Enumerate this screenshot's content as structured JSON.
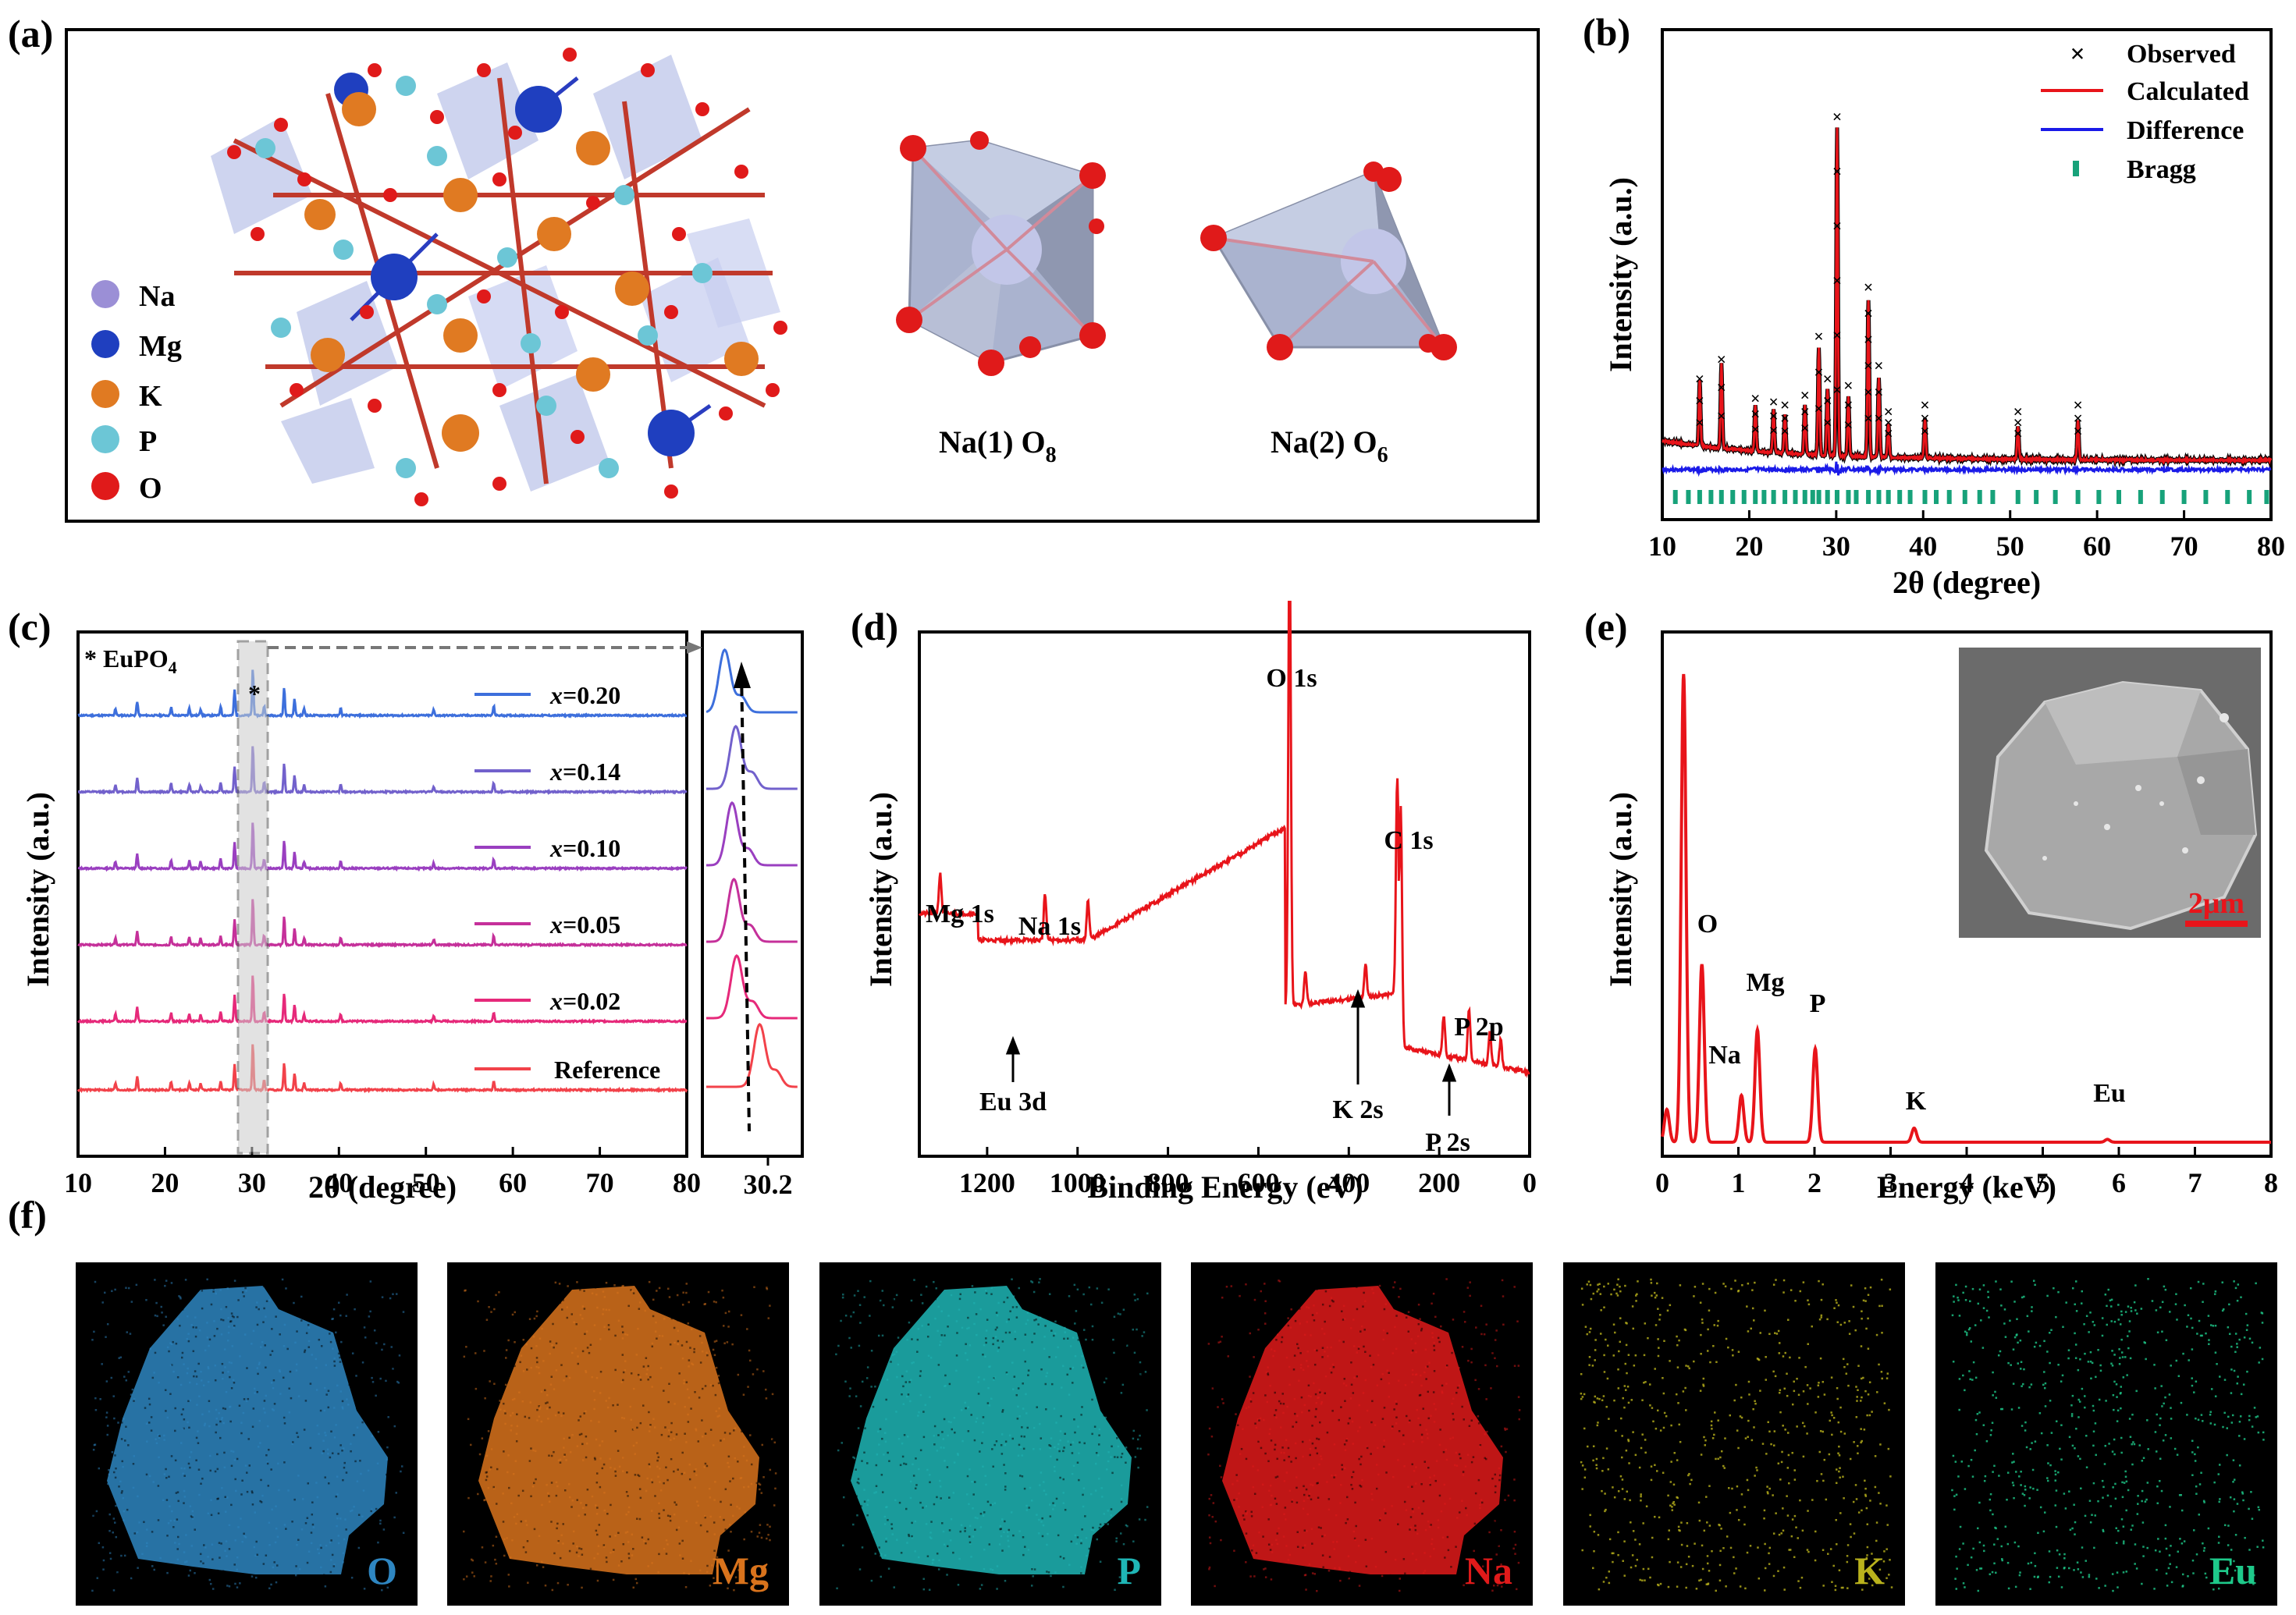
{
  "panels": {
    "a": "(a)",
    "b": "(b)",
    "c": "(c)",
    "d": "(d)",
    "e": "(e)",
    "f": "(f)"
  },
  "panel_a": {
    "legend": [
      {
        "label": "Na",
        "color": "#9b8fd6"
      },
      {
        "label": "Mg",
        "color": "#1f3fbf"
      },
      {
        "label": "K",
        "color": "#e07a22"
      },
      {
        "label": "P",
        "color": "#6cc6d6"
      },
      {
        "label": "O",
        "color": "#e01a1a"
      }
    ],
    "polyhedra": [
      {
        "prefix": "Na(1) O",
        "sub": "8"
      },
      {
        "prefix": "Na(2) O",
        "sub": "6"
      }
    ]
  },
  "chart_data": [
    {
      "id": "b",
      "type": "line",
      "xlabel": "2θ (degree)",
      "ylabel": "Intensity (a.u.)",
      "xlim": [
        10,
        80
      ],
      "xticks": [
        "10",
        "20",
        "30",
        "40",
        "50",
        "60",
        "70",
        "80"
      ],
      "legend_position": "top-right",
      "legend": [
        {
          "label": "Observed",
          "color": "#000000",
          "marker": "x"
        },
        {
          "label": "Calculated",
          "color": "#e8141a",
          "marker": "line"
        },
        {
          "label": "Difference",
          "color": "#1a1ae8",
          "marker": "line"
        },
        {
          "label": "Bragg",
          "color": "#17a27a",
          "marker": "bar"
        }
      ],
      "peaks": [
        {
          "x": 14.3,
          "h": 0.2
        },
        {
          "x": 16.8,
          "h": 0.26
        },
        {
          "x": 20.7,
          "h": 0.14
        },
        {
          "x": 22.8,
          "h": 0.13
        },
        {
          "x": 24.1,
          "h": 0.12
        },
        {
          "x": 26.4,
          "h": 0.15
        },
        {
          "x": 28.0,
          "h": 0.33
        },
        {
          "x": 29.0,
          "h": 0.2
        },
        {
          "x": 30.1,
          "h": 1.0
        },
        {
          "x": 31.4,
          "h": 0.18
        },
        {
          "x": 33.7,
          "h": 0.48
        },
        {
          "x": 34.9,
          "h": 0.24
        },
        {
          "x": 36.0,
          "h": 0.1
        },
        {
          "x": 40.2,
          "h": 0.12
        },
        {
          "x": 50.9,
          "h": 0.1
        },
        {
          "x": 57.8,
          "h": 0.12
        }
      ],
      "bragg_positions": [
        11.5,
        13.0,
        14.3,
        15.6,
        16.8,
        18.1,
        19.4,
        20.7,
        21.7,
        22.8,
        24.1,
        25.3,
        26.4,
        27.3,
        28.0,
        29.0,
        30.1,
        31.4,
        32.3,
        33.7,
        34.9,
        36.0,
        37.3,
        38.5,
        40.2,
        41.5,
        43.0,
        44.8,
        46.5,
        48.0,
        50.9,
        53.0,
        55.2,
        57.8,
        60.2,
        62.5,
        65.0,
        67.5,
        70.0,
        72.5,
        75.0,
        77.5,
        79.5
      ]
    },
    {
      "id": "c",
      "type": "line",
      "xlabel": "2θ (degree)",
      "ylabel": "Intensity (a.u.)",
      "xlim": [
        10,
        80
      ],
      "xticks": [
        "10",
        "20",
        "30",
        "40",
        "50",
        "60",
        "70",
        "80"
      ],
      "annotation": "* EuPO",
      "annotation_sub": "4",
      "series": [
        {
          "name": "x=0.20",
          "color": "#3d6fdc",
          "prefix": "x",
          "value": "=0.20"
        },
        {
          "name": "x=0.14",
          "color": "#7261cc",
          "prefix": "x",
          "value": "=0.14"
        },
        {
          "name": "x=0.10",
          "color": "#9a3fc0",
          "prefix": "x",
          "value": "=0.10"
        },
        {
          "name": "x=0.05",
          "color": "#c5309a",
          "prefix": "x",
          "value": "=0.05"
        },
        {
          "name": "x=0.02",
          "color": "#e6297a",
          "prefix": "x",
          "value": "=0.02"
        },
        {
          "name": "Reference",
          "color": "#f2424a",
          "prefix": "",
          "value": "Reference"
        }
      ],
      "peaks": [
        {
          "x": 14.3,
          "h": 0.15
        },
        {
          "x": 16.8,
          "h": 0.3
        },
        {
          "x": 20.7,
          "h": 0.18
        },
        {
          "x": 22.8,
          "h": 0.16
        },
        {
          "x": 24.1,
          "h": 0.14
        },
        {
          "x": 26.4,
          "h": 0.2
        },
        {
          "x": 28.0,
          "h": 0.55
        },
        {
          "x": 30.1,
          "h": 1.0
        },
        {
          "x": 31.4,
          "h": 0.2
        },
        {
          "x": 33.7,
          "h": 0.6
        },
        {
          "x": 34.9,
          "h": 0.35
        },
        {
          "x": 36.0,
          "h": 0.15
        },
        {
          "x": 40.2,
          "h": 0.15
        },
        {
          "x": 50.9,
          "h": 0.12
        },
        {
          "x": 57.8,
          "h": 0.2
        }
      ],
      "zoom_tick": "30.2",
      "zoom_peak_shift": [
        0.2,
        0.32,
        0.28,
        0.3,
        0.33,
        0.58
      ]
    },
    {
      "id": "d",
      "type": "line",
      "xlabel": "Binding Energy (eV)",
      "ylabel": "Intensity (a.u.)",
      "xlim": [
        1350,
        0
      ],
      "xticks": [
        "1200",
        "1000",
        "800",
        "600",
        "400",
        "200",
        "0"
      ],
      "labels": [
        "O 1s",
        "C 1s",
        "Mg 1s",
        "Na 1s",
        "P 2p",
        "Eu 3d",
        "K 2s",
        "P 2s"
      ],
      "peaks": [
        {
          "x": 1304,
          "h": 0.06
        },
        {
          "x": 1072,
          "h": 0.07
        },
        {
          "x": 977,
          "h": 0.06
        },
        {
          "x": 531,
          "h": 0.7
        },
        {
          "x": 496,
          "h": 0.05
        },
        {
          "x": 363,
          "h": 0.05
        },
        {
          "x": 293,
          "h": 0.32
        },
        {
          "x": 285,
          "h": 0.36
        },
        {
          "x": 190,
          "h": 0.06
        },
        {
          "x": 134,
          "h": 0.08
        },
        {
          "x": 88,
          "h": 0.05
        },
        {
          "x": 64,
          "h": 0.04
        }
      ]
    },
    {
      "id": "e",
      "type": "line",
      "xlabel": "Energy (keV)",
      "ylabel": "Intensity (a.u.)",
      "xlim": [
        0,
        8
      ],
      "xticks": [
        "0",
        "1",
        "2",
        "3",
        "4",
        "5",
        "6",
        "7",
        "8"
      ],
      "labels": [
        "O",
        "Mg",
        "Na",
        "P",
        "K",
        "Eu"
      ],
      "scalebar": "2μm",
      "peaks": [
        {
          "x": 0.06,
          "h": 0.07
        },
        {
          "x": 0.28,
          "h": 1.0
        },
        {
          "x": 0.52,
          "h": 0.38
        },
        {
          "x": 1.04,
          "h": 0.1
        },
        {
          "x": 1.25,
          "h": 0.24
        },
        {
          "x": 2.01,
          "h": 0.2
        },
        {
          "x": 3.31,
          "h": 0.03
        },
        {
          "x": 5.85,
          "h": 0.006
        }
      ]
    }
  ],
  "maps": [
    {
      "label": "O",
      "color": "#2e86c1"
    },
    {
      "label": "Mg",
      "color": "#d9731c"
    },
    {
      "label": "P",
      "color": "#1fb6b6"
    },
    {
      "label": "Na",
      "color": "#e01a1a"
    },
    {
      "label": "K",
      "color": "#b9b21c"
    },
    {
      "label": "Eu",
      "color": "#1ec98a"
    }
  ]
}
